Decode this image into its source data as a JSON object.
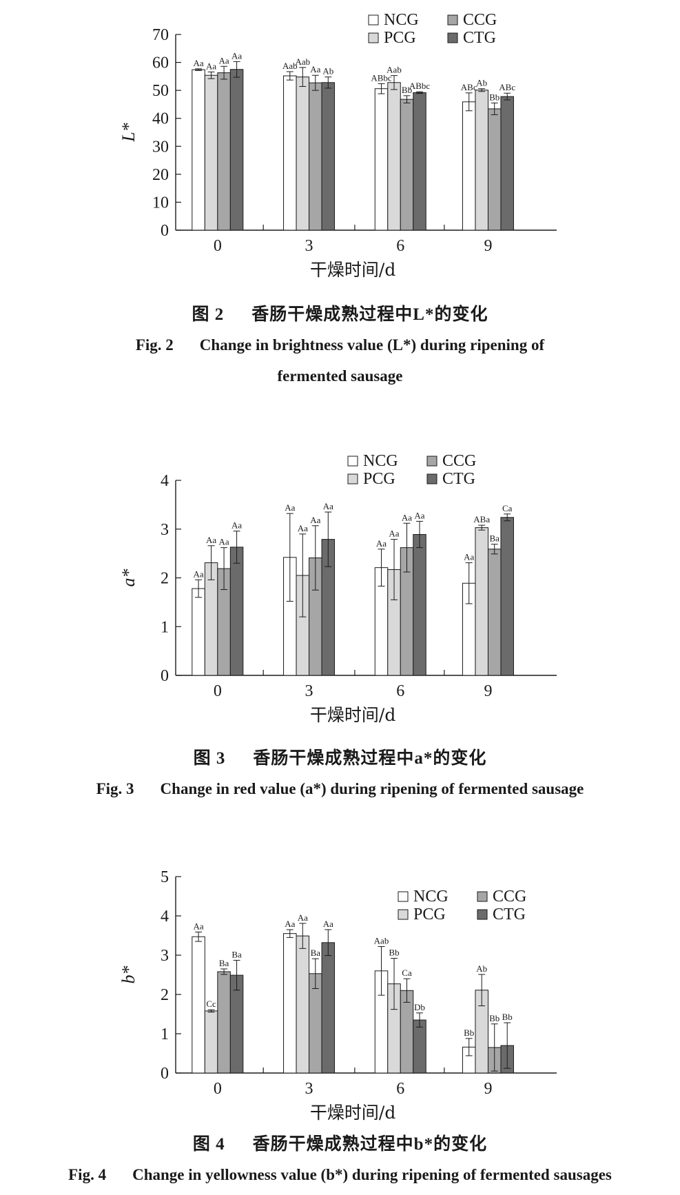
{
  "colors": {
    "NCG": "#ffffff",
    "PCG": "#d9d9d9",
    "CCG": "#a6a6a6",
    "CTG": "#6b6b6b",
    "axis": "#1a1a1a"
  },
  "legend": [
    "NCG",
    "CCG",
    "PCG",
    "CTG"
  ],
  "chart_data": [
    {
      "type": "bar",
      "categories": [
        "0",
        "3",
        "6",
        "9"
      ],
      "xlabel": "干燥时间/d",
      "ylabel": "L*",
      "ylim": [
        0,
        70
      ],
      "yticks": [
        "0",
        "10",
        "20",
        "30",
        "40",
        "50",
        "60",
        "70"
      ],
      "legend": "top-right",
      "series": [
        {
          "name": "NCG",
          "values": [
            57.4,
            55.2,
            50.6,
            45.9
          ],
          "errors": [
            0.3,
            1.5,
            1.8,
            3.2
          ],
          "labels": [
            "Aa",
            "Aab",
            "ABbc",
            "ABc"
          ]
        },
        {
          "name": "PCG",
          "values": [
            55.4,
            54.8,
            52.8,
            50.1
          ],
          "errors": [
            1.2,
            3.4,
            2.5,
            0.5
          ],
          "labels": [
            "Aa",
            "Aab",
            "Aab",
            "Ab"
          ]
        },
        {
          "name": "CCG",
          "values": [
            56.3,
            52.7,
            46.8,
            43.4
          ],
          "errors": [
            2.3,
            2.7,
            1.3,
            2.1
          ],
          "labels": [
            "Aa",
            "Aa",
            "Bb",
            "Bb"
          ]
        },
        {
          "name": "CTG",
          "values": [
            57.5,
            52.8,
            49.2,
            47.8
          ],
          "errors": [
            2.8,
            2.0,
            0.3,
            1.2
          ],
          "labels": [
            "Aa",
            "Ab",
            "ABbc",
            "ABc"
          ]
        }
      ]
    },
    {
      "type": "bar",
      "categories": [
        "0",
        "3",
        "6",
        "9"
      ],
      "xlabel": "干燥时间/d",
      "ylabel": "a*",
      "ylim": [
        0,
        4
      ],
      "yticks": [
        "0",
        "1",
        "2",
        "3",
        "4"
      ],
      "legend": "top-center",
      "series": [
        {
          "name": "NCG",
          "values": [
            1.78,
            2.42,
            2.21,
            1.89
          ],
          "errors": [
            0.18,
            0.9,
            0.38,
            0.42
          ],
          "labels": [
            "Aa",
            "Aa",
            "Aa",
            "Aa"
          ]
        },
        {
          "name": "PCG",
          "values": [
            2.31,
            2.05,
            2.17,
            3.03
          ],
          "errors": [
            0.35,
            0.85,
            0.62,
            0.05
          ],
          "labels": [
            "Aa",
            "Aa",
            "Aa",
            "ABa"
          ]
        },
        {
          "name": "CCG",
          "values": [
            2.19,
            2.41,
            2.62,
            2.59
          ],
          "errors": [
            0.43,
            0.66,
            0.5,
            0.1
          ],
          "labels": [
            "Aa",
            "Aa",
            "Aa",
            "Ba"
          ]
        },
        {
          "name": "CTG",
          "values": [
            2.63,
            2.79,
            2.89,
            3.24
          ],
          "errors": [
            0.33,
            0.56,
            0.27,
            0.07
          ],
          "labels": [
            "Aa",
            "Aa",
            "Aa",
            "Ca"
          ]
        }
      ]
    },
    {
      "type": "bar",
      "categories": [
        "0",
        "3",
        "6",
        "9"
      ],
      "xlabel": "干燥时间/d",
      "ylabel": "b*",
      "ylim": [
        0,
        5
      ],
      "yticks": [
        "0",
        "1",
        "2",
        "3",
        "4",
        "5"
      ],
      "legend": "top-right",
      "series": [
        {
          "name": "NCG",
          "values": [
            3.47,
            3.55,
            2.6,
            0.66
          ],
          "errors": [
            0.12,
            0.1,
            0.62,
            0.22
          ],
          "labels": [
            "Aa",
            "Aa",
            "Aab",
            "Bb"
          ]
        },
        {
          "name": "PCG",
          "values": [
            1.58,
            3.49,
            2.27,
            2.11
          ],
          "errors": [
            0.03,
            0.32,
            0.65,
            0.4
          ],
          "labels": [
            "Cc",
            "Aa",
            "Bb",
            "Ab"
          ]
        },
        {
          "name": "CCG",
          "values": [
            2.58,
            2.53,
            2.1,
            0.65
          ],
          "errors": [
            0.07,
            0.38,
            0.3,
            0.6
          ],
          "labels": [
            "Ba",
            "Ba",
            "Ca",
            "Bb"
          ]
        },
        {
          "name": "CTG",
          "values": [
            2.49,
            3.32,
            1.35,
            0.7
          ],
          "errors": [
            0.38,
            0.33,
            0.18,
            0.58
          ],
          "labels": [
            "Ba",
            "Aa",
            "Db",
            "Bb"
          ]
        }
      ]
    }
  ],
  "captions": [
    {
      "cn_label": "图 2",
      "cn_text": "香肠干燥成熟过程中L*的变化",
      "en_label": "Fig. 2",
      "en_text": "Change in brightness value (L*) during ripening of",
      "en_text2": "fermented sausage"
    },
    {
      "cn_label": "图 3",
      "cn_text": "香肠干燥成熟过程中a*的变化",
      "en_label": "Fig. 3",
      "en_text": "Change in red value (a*) during ripening of fermented sausage"
    },
    {
      "cn_label": "图 4",
      "cn_text": "香肠干燥成熟过程中b*的变化",
      "en_label": "Fig. 4",
      "en_text": "Change in yellowness value (b*) during ripening of fermented sausages"
    }
  ]
}
